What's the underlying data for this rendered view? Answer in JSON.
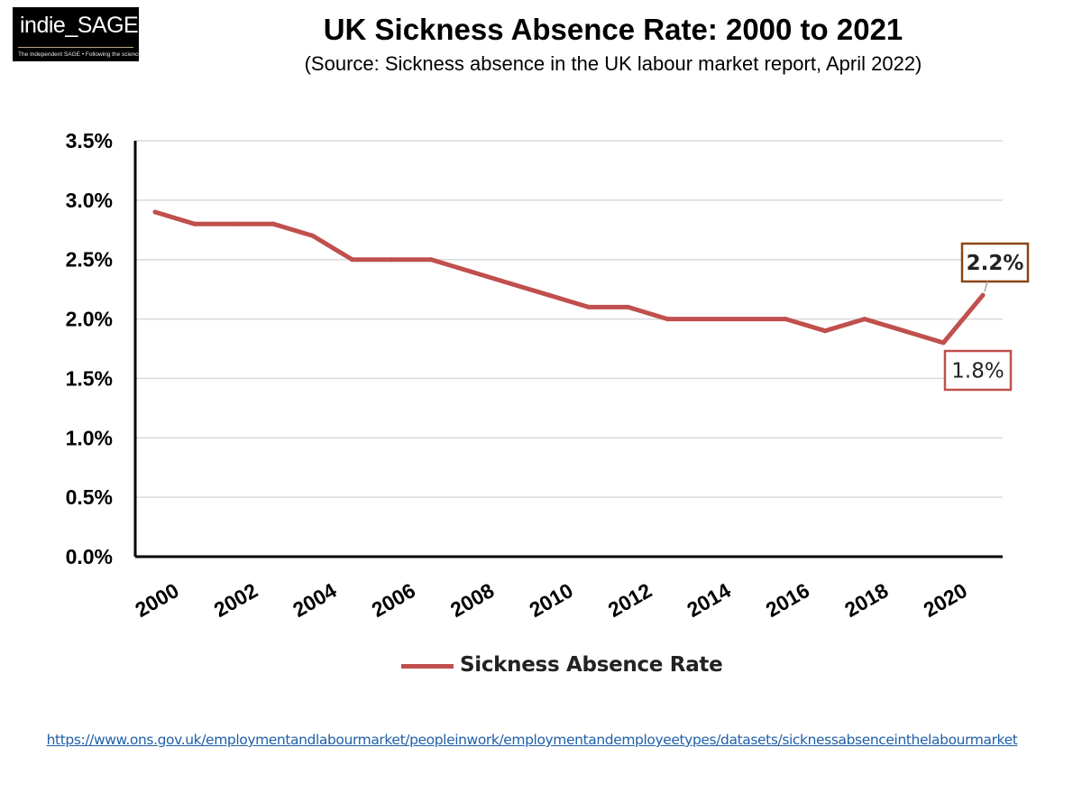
{
  "logo": {
    "name": "indie_SAGE",
    "tagline": "The Independent SAGE • Following the science"
  },
  "colors": {
    "line": "#c0504d",
    "axis": "#000000",
    "grid": "#d9d9d9",
    "label_box_max": "#8b4513",
    "label_box_min": "#c0504d",
    "link": "#1f5fa8"
  },
  "source_url": "https://www.ons.gov.uk/employmentandlabourmarket/peopleinwork/employmentandemployeetypes/datasets/sicknessabsenceinthelabourmarket",
  "chart_data": {
    "type": "line",
    "title": "UK Sickness Absence Rate: 2000 to 2021",
    "subtitle": "(Source: Sickness absence in the UK labour market report, April 2022)",
    "xlabel": "",
    "ylabel": "",
    "x": [
      2000,
      2001,
      2002,
      2003,
      2004,
      2005,
      2006,
      2007,
      2008,
      2009,
      2010,
      2011,
      2012,
      2013,
      2014,
      2015,
      2016,
      2017,
      2018,
      2019,
      2020,
      2021
    ],
    "x_tick_labels": [
      "2000",
      "2002",
      "2004",
      "2006",
      "2008",
      "2010",
      "2012",
      "2014",
      "2016",
      "2018",
      "2020"
    ],
    "ylim": [
      0,
      3.5
    ],
    "y_tick_labels": [
      "0.0%",
      "0.5%",
      "1.0%",
      "1.5%",
      "2.0%",
      "2.5%",
      "3.0%",
      "3.5%"
    ],
    "grid": true,
    "legend_position": "bottom",
    "series": [
      {
        "name": "Sickness Absence Rate",
        "values": [
          2.9,
          2.8,
          2.8,
          2.8,
          2.7,
          2.5,
          2.5,
          2.5,
          2.4,
          2.3,
          2.2,
          2.1,
          2.1,
          2.0,
          2.0,
          2.0,
          2.0,
          1.9,
          2.0,
          1.9,
          1.8,
          2.2
        ]
      }
    ],
    "annotations": [
      {
        "text": "2.2%",
        "x": 2021,
        "y": 2.2,
        "bold": true
      },
      {
        "text": "1.8%",
        "x": 2020,
        "y": 1.8,
        "bold": false
      }
    ]
  }
}
